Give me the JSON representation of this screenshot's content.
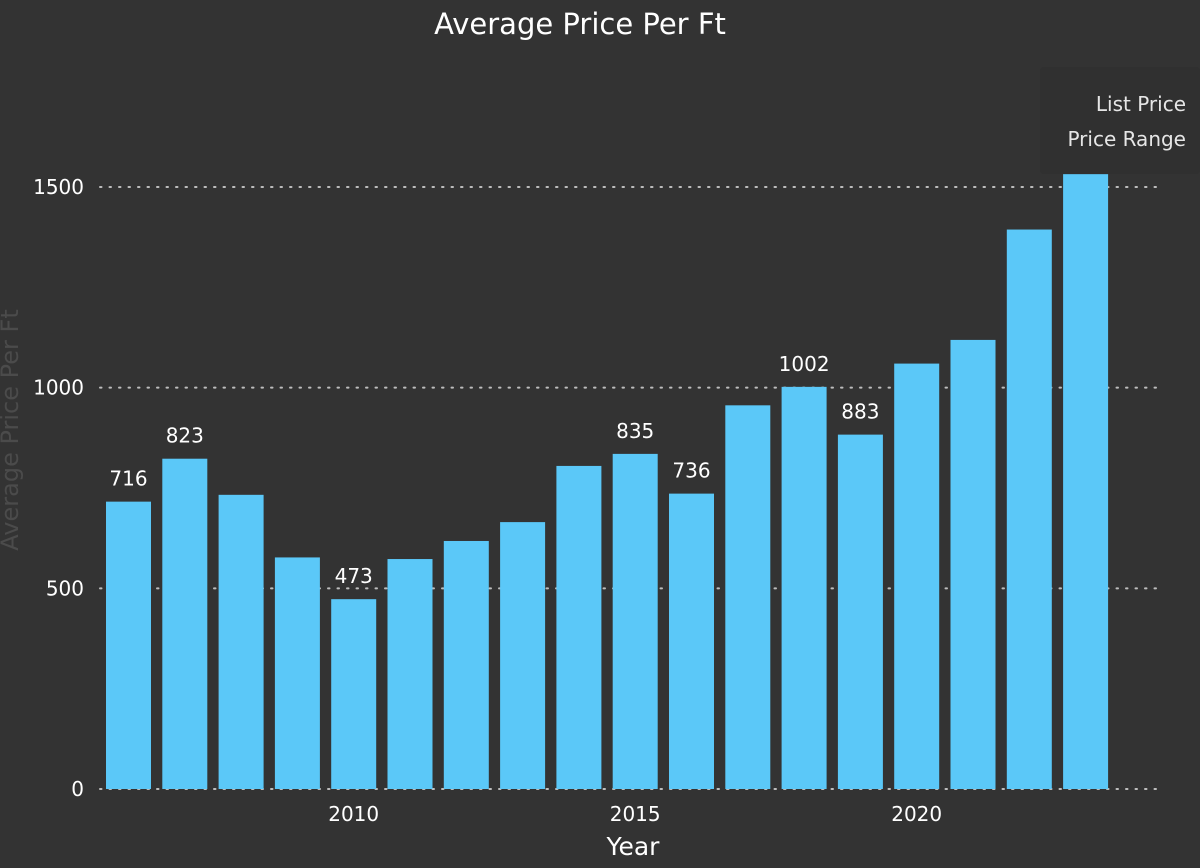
{
  "chart_data": {
    "type": "bar",
    "title": "Average Price Per Ft",
    "xlabel": "Year",
    "ylabel": "Average Price Per Ft",
    "x": [
      2006,
      2007,
      2008,
      2009,
      2010,
      2011,
      2012,
      2013,
      2014,
      2015,
      2016,
      2017,
      2018,
      2019,
      2020,
      2021,
      2022,
      2023
    ],
    "values": [
      716,
      823,
      733,
      577,
      473,
      573,
      618,
      665,
      805,
      835,
      736,
      956,
      1002,
      883,
      1060,
      1119,
      1394,
      1532
    ],
    "data_labels": [
      "716",
      "823",
      "",
      "",
      "473",
      "",
      "",
      "",
      "",
      "835",
      "736",
      "",
      "1002",
      "883",
      "",
      "",
      "",
      ""
    ],
    "x_ticks": [
      "2010",
      "2015",
      "2020"
    ],
    "y_ticks": [
      "0",
      "500",
      "1000",
      "1500"
    ],
    "ylim": [
      0,
      1500
    ],
    "grid": true,
    "bar_color": "#5bc8f8",
    "legend": {
      "placement": "top-right",
      "entries": [
        "List Price",
        "Price Range"
      ]
    }
  }
}
